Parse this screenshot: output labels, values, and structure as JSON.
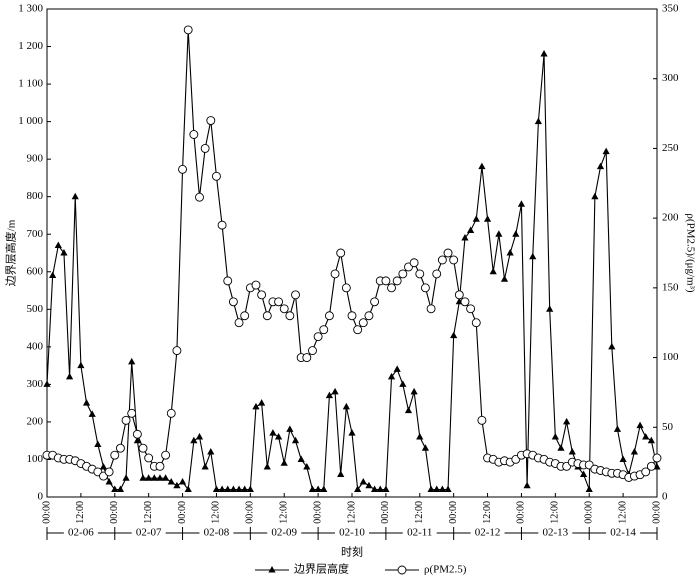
{
  "chart_data": {
    "type": "line",
    "y_label": "边界层高度/m",
    "y2_label": "ρ(PM2.5)/(μg/m³)",
    "x_label": "时刻",
    "x": [
      0,
      2,
      4,
      6,
      8,
      10,
      12,
      14,
      16,
      18,
      20,
      22,
      24,
      26,
      28,
      30,
      32,
      34,
      36,
      38,
      40,
      42,
      44,
      46,
      48,
      50,
      52,
      54,
      56,
      58,
      60,
      62,
      64,
      66,
      68,
      70,
      72,
      74,
      76,
      78,
      80,
      82,
      84,
      86,
      88,
      90,
      92,
      94,
      96,
      98,
      100,
      102,
      104,
      106,
      108,
      110,
      112,
      114,
      116,
      118,
      120,
      122,
      124,
      126,
      128,
      130,
      132,
      134,
      136,
      138,
      140,
      142,
      144,
      146,
      148,
      150,
      152,
      154,
      156,
      158,
      160,
      162,
      164,
      166,
      168,
      170,
      172,
      174,
      176,
      178,
      180,
      182,
      184,
      186,
      188,
      190,
      192,
      194,
      196,
      198,
      200,
      202,
      204,
      206,
      208,
      210,
      212,
      214,
      216
    ],
    "xlim": [
      0,
      216
    ],
    "xticks": [
      {
        "value": 0,
        "label": "00:00"
      },
      {
        "value": 12,
        "label": "12:00"
      },
      {
        "value": 24,
        "label": "00:00"
      },
      {
        "value": 36,
        "label": "12:00"
      },
      {
        "value": 48,
        "label": "00:00"
      },
      {
        "value": 60,
        "label": "12:00"
      },
      {
        "value": 72,
        "label": "00:00"
      },
      {
        "value": 84,
        "label": "12:00"
      },
      {
        "value": 96,
        "label": "00:00"
      },
      {
        "value": 108,
        "label": "12:00"
      },
      {
        "value": 120,
        "label": "00:00"
      },
      {
        "value": 132,
        "label": "12:00"
      },
      {
        "value": 144,
        "label": "00:00"
      },
      {
        "value": 156,
        "label": "12:00"
      },
      {
        "value": 168,
        "label": "00:00"
      },
      {
        "value": 180,
        "label": "12:00"
      },
      {
        "value": 192,
        "label": "00:00"
      },
      {
        "value": 204,
        "label": "12:00"
      },
      {
        "value": 216,
        "label": "00:00"
      }
    ],
    "day_labels": [
      "02-06",
      "02-07",
      "02-08",
      "02-09",
      "02-10",
      "02-11",
      "02-12",
      "02-13",
      "02-14"
    ],
    "ylim": [
      0,
      1300
    ],
    "yticks": [
      0,
      100,
      200,
      300,
      400,
      500,
      600,
      700,
      800,
      900,
      {
        "value": 1000,
        "label": "1 000"
      },
      {
        "value": 1100,
        "label": "1 100"
      },
      {
        "value": 1200,
        "label": "1 200"
      },
      {
        "value": 1300,
        "label": "1 300"
      }
    ],
    "y2lim": [
      0,
      350
    ],
    "y2ticks": [
      0,
      50,
      100,
      150,
      200,
      250,
      300,
      350
    ],
    "series": [
      {
        "name": "边界层高度",
        "color": "#000000",
        "marker": "triangle",
        "values": [
          300,
          590,
          670,
          650,
          320,
          800,
          350,
          250,
          220,
          140,
          80,
          40,
          20,
          20,
          50,
          360,
          150,
          50,
          50,
          50,
          50,
          50,
          40,
          30,
          40,
          20,
          150,
          160,
          80,
          120,
          20,
          20,
          20,
          20,
          20,
          20,
          20,
          240,
          250,
          80,
          170,
          160,
          90,
          180,
          150,
          100,
          80,
          20,
          20,
          20,
          270,
          280,
          60,
          240,
          170,
          20,
          40,
          30,
          20,
          20,
          20,
          320,
          340,
          300,
          230,
          280,
          160,
          130,
          20,
          20,
          20,
          20,
          430,
          520,
          690,
          710,
          740,
          880,
          740,
          600,
          700,
          580,
          650,
          700,
          780,
          30,
          640,
          1000,
          1180,
          500,
          160,
          130,
          200,
          120,
          80,
          60,
          20,
          800,
          880,
          920,
          400,
          180,
          100,
          60,
          120,
          190,
          160,
          150,
          80
        ]
      },
      {
        "name": "ρ(PM2.5)",
        "color": "#000000",
        "marker": "circle",
        "axis": "y2",
        "values": [
          30,
          30,
          28,
          27,
          27,
          26,
          24,
          22,
          20,
          18,
          15,
          18,
          30,
          35,
          55,
          60,
          45,
          35,
          28,
          22,
          22,
          30,
          60,
          105,
          235,
          335,
          260,
          215,
          250,
          270,
          230,
          195,
          155,
          140,
          125,
          130,
          150,
          152,
          145,
          130,
          140,
          140,
          135,
          130,
          145,
          100,
          100,
          105,
          115,
          120,
          130,
          160,
          175,
          150,
          130,
          120,
          125,
          130,
          140,
          155,
          155,
          150,
          155,
          160,
          165,
          168,
          160,
          150,
          135,
          160,
          170,
          175,
          170,
          145,
          140,
          135,
          125,
          55,
          28,
          27,
          25,
          26,
          25,
          27,
          30,
          31,
          30,
          28,
          27,
          25,
          24,
          22,
          22,
          25,
          24,
          23,
          23,
          20,
          19,
          18,
          17,
          17,
          16,
          14,
          15,
          16,
          18,
          22,
          28
        ]
      }
    ]
  }
}
